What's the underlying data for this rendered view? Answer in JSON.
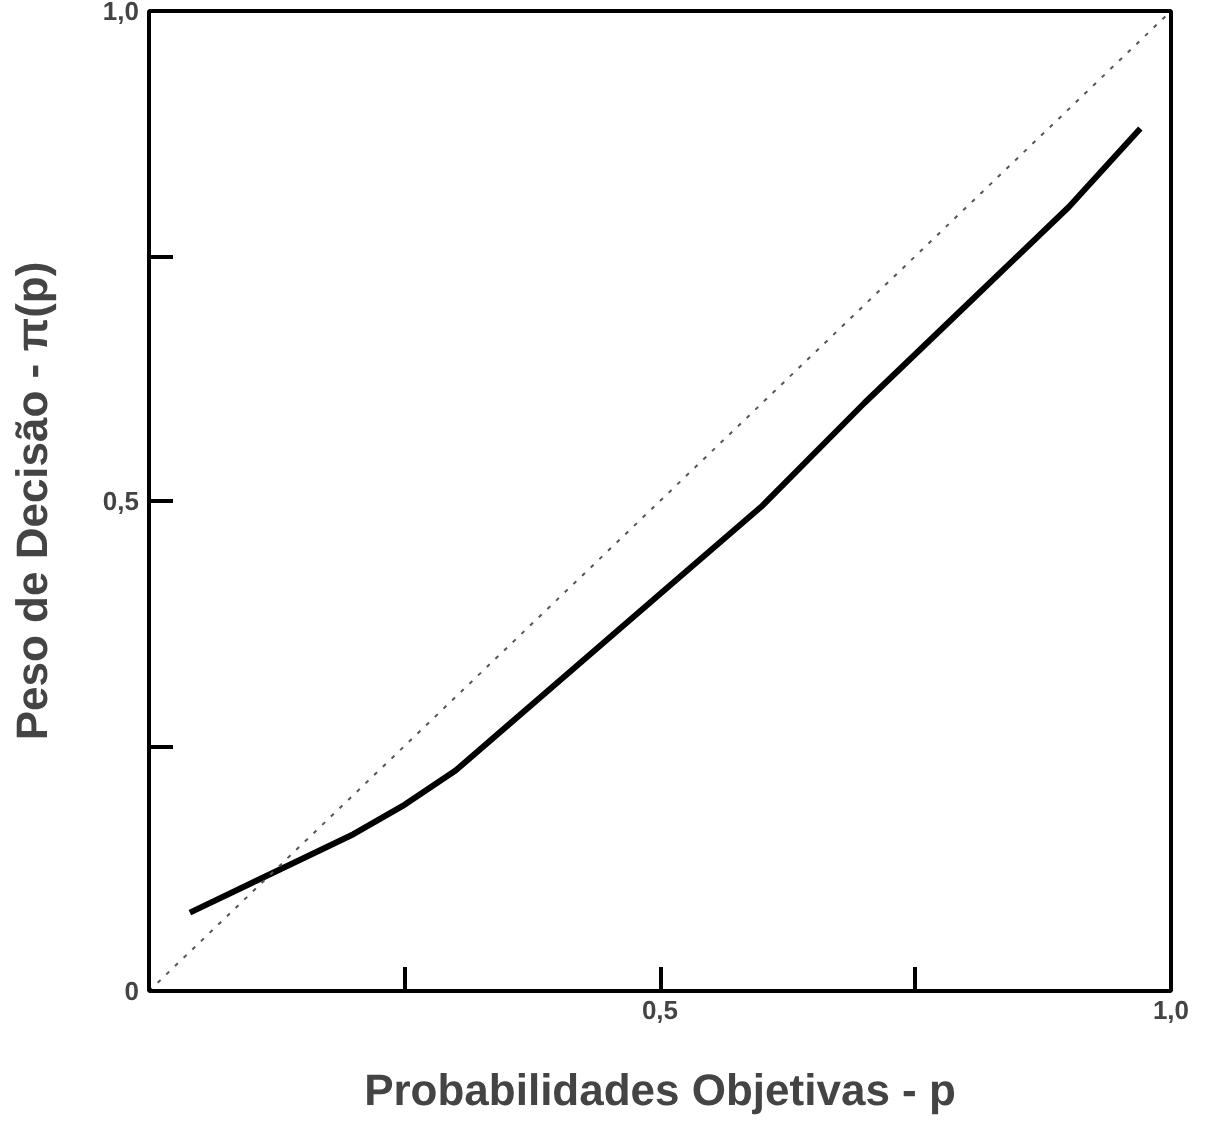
{
  "chart_data": {
    "type": "line",
    "xlabel": "Probabilidades Objetivas - p",
    "ylabel": "Peso de Decisão - π(p)",
    "xlim": [
      0,
      1
    ],
    "ylim": [
      0,
      1
    ],
    "xticks": [
      {
        "value": 0.25,
        "label": null
      },
      {
        "value": 0.5,
        "label": "0,5"
      },
      {
        "value": 0.75,
        "label": null
      },
      {
        "value": 1,
        "label": "1,0"
      }
    ],
    "yticks": [
      {
        "value": 0,
        "label": "0"
      },
      {
        "value": 0.25,
        "label": null
      },
      {
        "value": 0.5,
        "label": "0,5"
      },
      {
        "value": 0.75,
        "label": null
      },
      {
        "value": 1,
        "label": "1,0"
      }
    ],
    "grid": false,
    "series": [
      {
        "color": "#000000",
        "line_style": "solid",
        "x": [
          0.04,
          0.1,
          0.15,
          0.2,
          0.25,
          0.3,
          0.4,
          0.5,
          0.6,
          0.7,
          0.8,
          0.9,
          0.97
        ],
        "values": [
          0.08,
          0.11,
          0.135,
          0.16,
          0.19,
          0.225,
          0.315,
          0.405,
          0.495,
          0.6,
          0.7,
          0.8,
          0.88
        ]
      },
      {
        "color": "#555555",
        "line_style": "dotted",
        "x": [
          0,
          1
        ],
        "values": [
          0,
          1
        ]
      }
    ]
  }
}
